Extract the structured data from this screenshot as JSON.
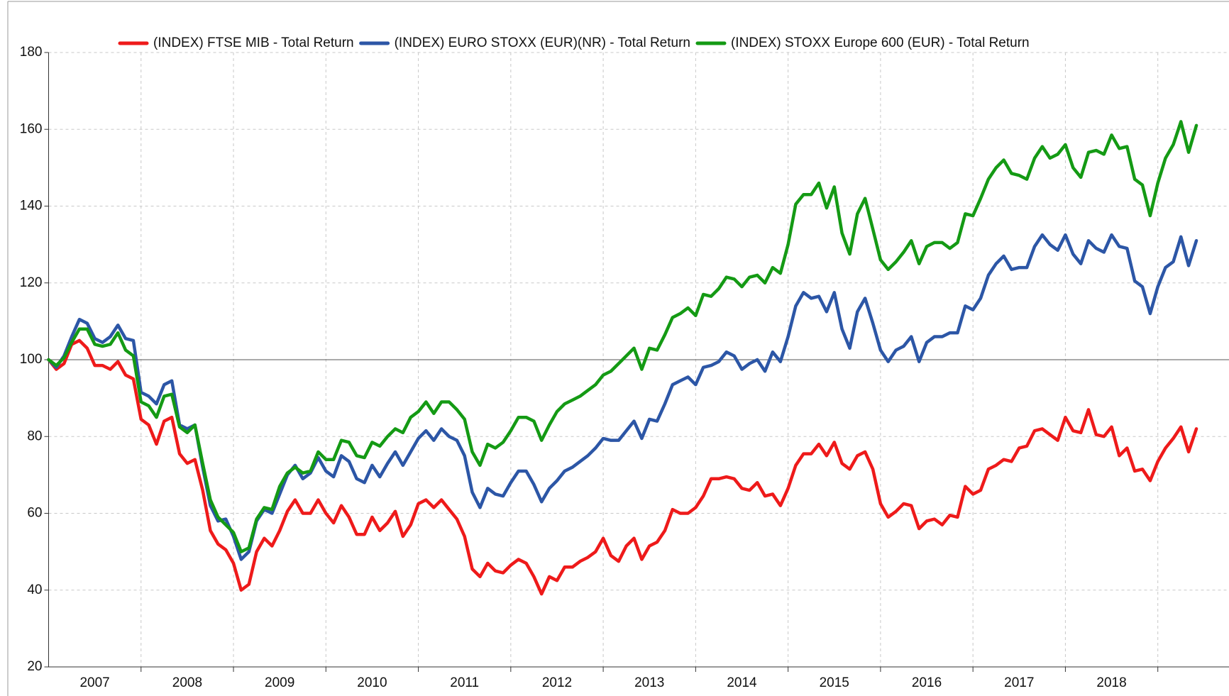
{
  "chart_data": {
    "type": "line",
    "legend": "top",
    "grid": true,
    "hline": 100,
    "ylim": [
      20,
      180
    ],
    "yticks": [
      20,
      40,
      60,
      80,
      100,
      120,
      140,
      160,
      180
    ],
    "xlim": [
      2007,
      2019.77
    ],
    "xticks": [
      {
        "value": 2007.5,
        "label": "2007"
      },
      {
        "value": 2008.5,
        "label": "2008"
      },
      {
        "value": 2009.5,
        "label": "2009"
      },
      {
        "value": 2010.5,
        "label": "2010"
      },
      {
        "value": 2011.5,
        "label": "2011"
      },
      {
        "value": 2012.5,
        "label": "2012"
      },
      {
        "value": 2013.5,
        "label": "2013"
      },
      {
        "value": 2014.5,
        "label": "2014"
      },
      {
        "value": 2015.5,
        "label": "2015"
      },
      {
        "value": 2016.5,
        "label": "2016"
      },
      {
        "value": 2017.5,
        "label": "2017"
      },
      {
        "value": 2018.5,
        "label": "2018"
      }
    ],
    "xgrid": [
      2008,
      2009,
      2010,
      2011,
      2012,
      2013,
      2014,
      2015,
      2016,
      2017,
      2018,
      2019
    ],
    "x": [
      2007,
      2007.083,
      2007.167,
      2007.25,
      2007.333,
      2007.417,
      2007.5,
      2007.583,
      2007.667,
      2007.75,
      2007.833,
      2007.917,
      2008,
      2008.083,
      2008.167,
      2008.25,
      2008.333,
      2008.417,
      2008.5,
      2008.583,
      2008.667,
      2008.75,
      2008.833,
      2008.917,
      2009,
      2009.083,
      2009.167,
      2009.25,
      2009.333,
      2009.417,
      2009.5,
      2009.583,
      2009.667,
      2009.75,
      2009.833,
      2009.917,
      2010,
      2010.083,
      2010.167,
      2010.25,
      2010.333,
      2010.417,
      2010.5,
      2010.583,
      2010.667,
      2010.75,
      2010.833,
      2010.917,
      2011,
      2011.083,
      2011.167,
      2011.25,
      2011.333,
      2011.417,
      2011.5,
      2011.583,
      2011.667,
      2011.75,
      2011.833,
      2011.917,
      2012,
      2012.083,
      2012.167,
      2012.25,
      2012.333,
      2012.417,
      2012.5,
      2012.583,
      2012.667,
      2012.75,
      2012.833,
      2012.917,
      2013,
      2013.083,
      2013.167,
      2013.25,
      2013.333,
      2013.417,
      2013.5,
      2013.583,
      2013.667,
      2013.75,
      2013.833,
      2013.917,
      2014,
      2014.083,
      2014.167,
      2014.25,
      2014.333,
      2014.417,
      2014.5,
      2014.583,
      2014.667,
      2014.75,
      2014.833,
      2014.917,
      2015,
      2015.083,
      2015.167,
      2015.25,
      2015.333,
      2015.417,
      2015.5,
      2015.583,
      2015.667,
      2015.75,
      2015.833,
      2015.917,
      2016,
      2016.083,
      2016.167,
      2016.25,
      2016.333,
      2016.417,
      2016.5,
      2016.583,
      2016.667,
      2016.75,
      2016.833,
      2016.917,
      2017,
      2017.083,
      2017.167,
      2017.25,
      2017.333,
      2017.417,
      2017.5,
      2017.583,
      2017.667,
      2017.75,
      2017.833,
      2017.917,
      2018,
      2018.083,
      2018.167,
      2018.25,
      2018.333,
      2018.417,
      2018.5,
      2018.583,
      2018.667,
      2018.75,
      2018.833,
      2018.917,
      2019,
      2019.083,
      2019.167,
      2019.25,
      2019.333,
      2019.417
    ],
    "series": [
      {
        "name": "(INDEX) FTSE MIB - Total Return",
        "color": "#ee1a1a",
        "values": [
          100,
          97.5,
          99,
          104,
          105,
          103,
          98.5,
          98.5,
          97.5,
          99.5,
          96,
          95,
          84.5,
          83,
          78,
          84,
          85,
          75.5,
          73,
          74,
          66,
          55.5,
          52,
          50.5,
          47,
          40,
          41.5,
          50,
          53.5,
          51.5,
          55.5,
          60.5,
          63.5,
          60,
          60,
          63.5,
          60,
          57.5,
          62,
          59,
          54.5,
          54.5,
          59,
          55.5,
          57.5,
          60.5,
          54,
          57,
          62.5,
          63.5,
          61.5,
          63.5,
          61,
          58.5,
          54,
          45.5,
          43.5,
          47,
          45,
          44.5,
          46.5,
          48,
          47,
          43.5,
          39,
          43.5,
          42.5,
          46,
          46,
          47.5,
          48.5,
          50,
          53.5,
          49,
          47.5,
          51.5,
          53.5,
          48,
          51.5,
          52.5,
          55.5,
          61,
          60,
          60,
          61.5,
          64.5,
          69,
          69,
          69.5,
          69,
          66.5,
          66,
          68,
          64.5,
          65,
          62,
          66.5,
          72.5,
          75.5,
          75.5,
          78,
          75,
          78.5,
          73,
          71.5,
          75,
          76,
          71.5,
          62.5,
          59,
          60.5,
          62.5,
          62,
          56,
          58,
          58.5,
          57,
          59.5,
          59,
          67,
          65,
          66,
          71.5,
          72.5,
          74,
          73.5,
          77,
          77.5,
          81.5,
          82,
          80.5,
          79,
          85,
          81.5,
          81,
          87,
          80.5,
          80,
          82.5,
          75,
          77,
          71,
          71.5,
          68.5,
          73.5,
          77,
          79.5,
          82.5,
          76,
          82
        ]
      },
      {
        "name": "(INDEX) EURO STOXX (EUR)(NR) - Total Return",
        "color": "#2c56a6",
        "values": [
          100,
          98,
          101,
          106,
          110.5,
          109.5,
          105.5,
          104.5,
          106,
          109,
          105.5,
          105,
          91.5,
          90.5,
          88.5,
          93.5,
          94.5,
          83,
          82,
          83,
          72,
          62,
          58,
          58.5,
          54,
          48,
          50,
          58,
          61,
          60,
          65,
          70,
          72.5,
          69,
          70.5,
          74.5,
          71,
          69.5,
          75,
          73.5,
          69,
          68,
          72.5,
          69.5,
          73,
          76,
          72.5,
          76,
          79.5,
          81.5,
          79,
          82,
          80,
          79,
          75,
          65.5,
          61.5,
          66.5,
          65,
          64.5,
          68,
          71,
          71,
          67.5,
          63,
          66.5,
          68.5,
          71,
          72,
          73.5,
          75,
          77,
          79.5,
          79,
          79,
          81.5,
          84,
          79.5,
          84.5,
          84,
          88.5,
          93.5,
          94.5,
          95.5,
          93.5,
          98,
          98.5,
          99.5,
          102,
          101,
          97.5,
          99,
          100,
          97,
          102,
          99.5,
          106,
          114,
          117.5,
          116,
          116.5,
          112.5,
          117.5,
          108,
          103,
          112.5,
          116,
          109.5,
          102.5,
          99.5,
          102.5,
          103.5,
          106,
          99.5,
          104.5,
          106,
          106,
          107,
          107,
          114,
          113,
          116,
          122,
          125,
          127,
          123.5,
          124,
          124,
          129.5,
          132.5,
          130,
          128.5,
          132.5,
          127.5,
          125,
          131,
          129,
          128,
          132.5,
          129.5,
          129,
          120.5,
          119,
          112,
          119,
          124,
          125.5,
          132,
          124.5,
          131
        ]
      },
      {
        "name": "(INDEX) STOXX Europe 600 (EUR) - Total Return",
        "color": "#149a14",
        "values": [
          100,
          98.5,
          100.5,
          104.5,
          108,
          108,
          104,
          103.5,
          104,
          107,
          102.5,
          101,
          89,
          88,
          85,
          90.5,
          91,
          82.5,
          81,
          83,
          73,
          63.5,
          59,
          57,
          55,
          50,
          51,
          58.5,
          61.5,
          61,
          67,
          70.5,
          72,
          70.5,
          71,
          76,
          74,
          74,
          79,
          78.5,
          75,
          74.5,
          78.5,
          77.5,
          80,
          82,
          81,
          85,
          86.5,
          89,
          86,
          89,
          89,
          87,
          84.5,
          76,
          72.5,
          78,
          77,
          78.5,
          81.5,
          85,
          85,
          84,
          79,
          83,
          86.5,
          88.5,
          89.5,
          90.5,
          92,
          93.5,
          96,
          97,
          99,
          101,
          103,
          97.5,
          103,
          102.5,
          106.5,
          111,
          112,
          113.5,
          111.5,
          117,
          116.5,
          118.5,
          121.5,
          121,
          119,
          121.5,
          122,
          120,
          124,
          122.5,
          130,
          140.5,
          143,
          143,
          146,
          139.5,
          145,
          133,
          127.5,
          138,
          142,
          134,
          126,
          123.5,
          125.5,
          128,
          131,
          125,
          129.5,
          130.5,
          130.5,
          129,
          130.5,
          138,
          137.5,
          142,
          147,
          150,
          152,
          148.5,
          148,
          147,
          152.5,
          155.5,
          152.5,
          153.5,
          156,
          150,
          147.5,
          154,
          154.5,
          153.5,
          158.5,
          155,
          155.5,
          147,
          145.5,
          137.5,
          146,
          152.5,
          156,
          162,
          154,
          161
        ]
      }
    ]
  }
}
